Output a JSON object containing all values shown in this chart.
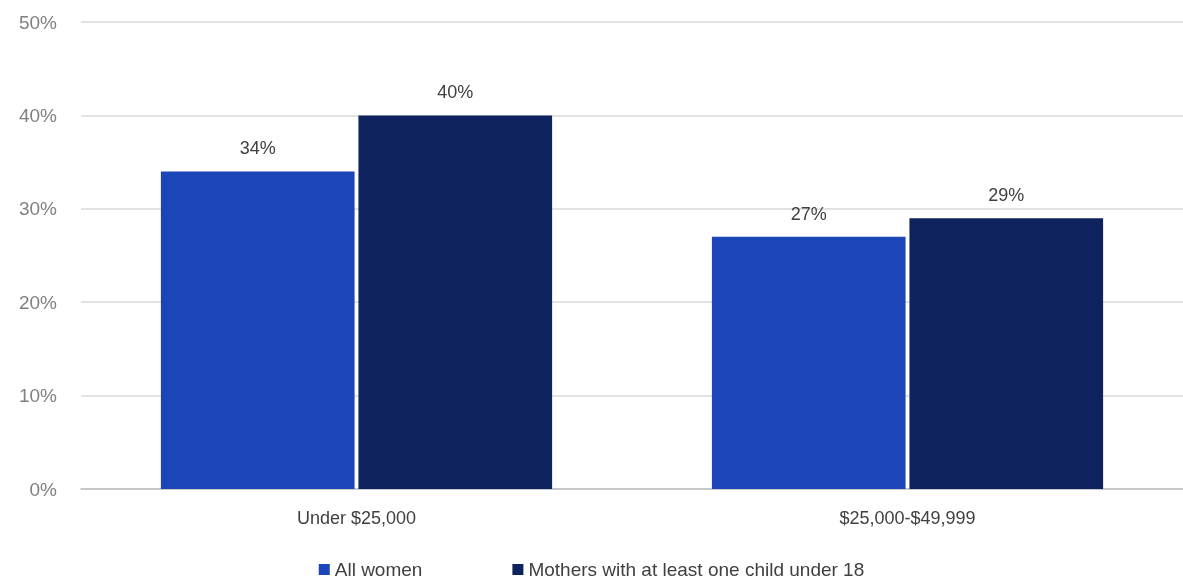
{
  "chart_data": {
    "type": "bar",
    "categories": [
      "Under $25,000",
      "$25,000-$49,999"
    ],
    "series": [
      {
        "name": "All women",
        "color": "#1c45b8",
        "values": [
          34,
          27
        ],
        "value_labels": [
          "34%",
          "27%"
        ]
      },
      {
        "name": "Mothers with at least one child under 18",
        "color": "#0e235e",
        "values": [
          40,
          29
        ],
        "value_labels": [
          "40%",
          "29%"
        ]
      }
    ],
    "ylim": [
      0,
      50
    ],
    "yticks": [
      {
        "value": 0,
        "label": "0%"
      },
      {
        "value": 10,
        "label": "10%"
      },
      {
        "value": 20,
        "label": "20%"
      },
      {
        "value": 30,
        "label": "30%"
      },
      {
        "value": 40,
        "label": "40%"
      },
      {
        "value": 50,
        "label": "50%"
      }
    ],
    "grid": "y",
    "legend": "bottom"
  }
}
